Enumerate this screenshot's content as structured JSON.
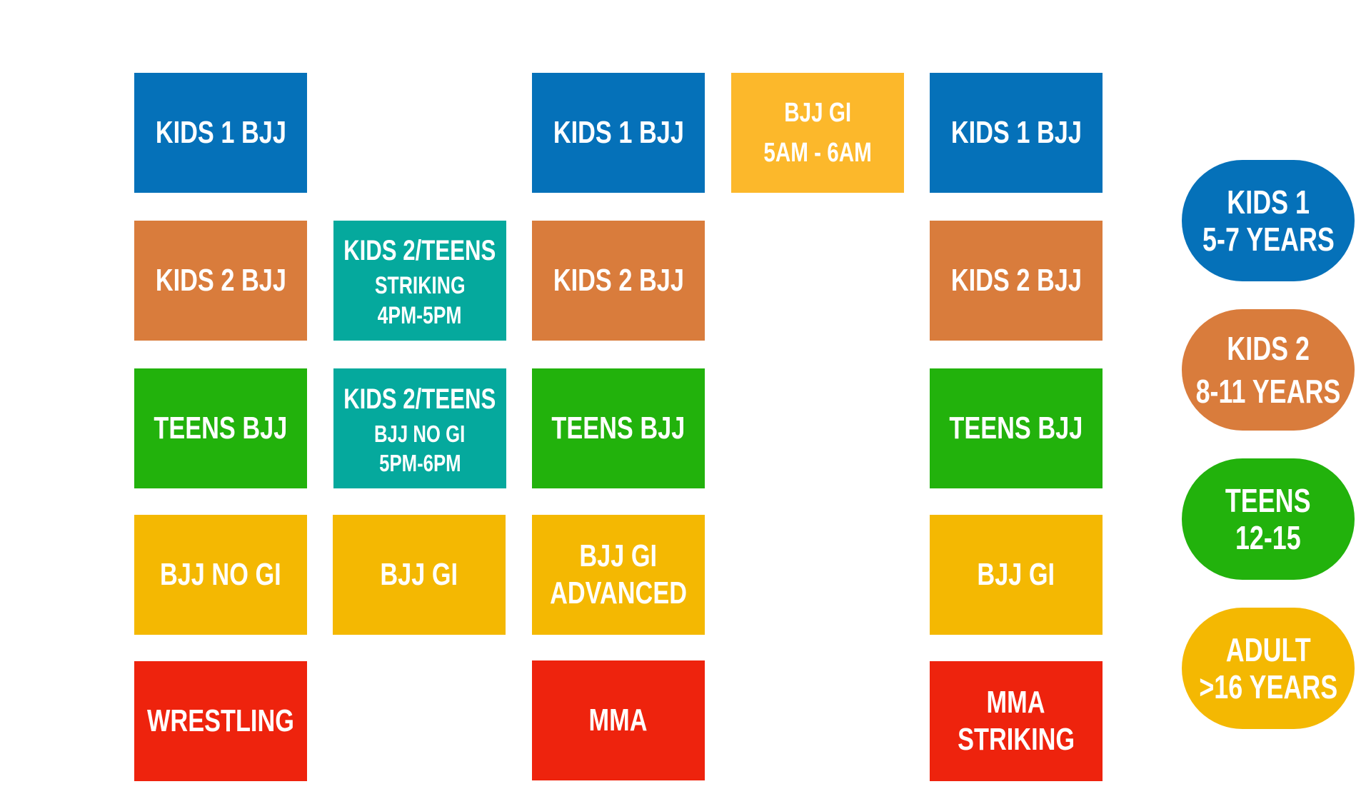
{
  "colors": {
    "kids1": "#0571b9",
    "kids2": "#d97c3c",
    "teens": "#22b20c",
    "adult": "#f4b802",
    "kids_teens_special": "#05a99d",
    "combat": "#ee230d"
  },
  "columns": [
    {
      "blocks": [
        {
          "lines": [
            "KIDS 1 BJJ"
          ]
        },
        {
          "lines": [
            "KIDS 2 BJJ"
          ]
        },
        {
          "lines": [
            "TEENS BJJ"
          ]
        },
        {
          "lines": [
            "BJJ NO GI"
          ]
        },
        {
          "lines": [
            "WRESTLING"
          ]
        }
      ]
    },
    {
      "blocks": [
        {
          "lines": [
            "KIDS 2/TEENS",
            "STRIKING",
            "4PM-5PM"
          ]
        },
        {
          "lines": [
            "KIDS 2/TEENS",
            "BJJ NO GI",
            "5PM-6PM"
          ]
        },
        {
          "lines": [
            "BJJ GI"
          ]
        }
      ]
    },
    {
      "blocks": [
        {
          "lines": [
            "KIDS 1 BJJ"
          ]
        },
        {
          "lines": [
            "KIDS 2 BJJ"
          ]
        },
        {
          "lines": [
            "TEENS BJJ"
          ]
        },
        {
          "lines": [
            "BJJ GI",
            "ADVANCED"
          ]
        },
        {
          "lines": [
            "MMA"
          ]
        }
      ]
    },
    {
      "blocks": [
        {
          "lines": [
            "BJJ GI",
            "5AM - 6AM"
          ]
        }
      ]
    },
    {
      "blocks": [
        {
          "lines": [
            "KIDS 1 BJJ"
          ]
        },
        {
          "lines": [
            "KIDS 2 BJJ"
          ]
        },
        {
          "lines": [
            "TEENS BJJ"
          ]
        },
        {
          "lines": [
            "BJJ GI"
          ]
        },
        {
          "lines": [
            "MMA",
            "STRIKING"
          ]
        }
      ]
    }
  ],
  "legend": [
    {
      "lines": [
        "KIDS 1",
        "5-7 YEARS"
      ]
    },
    {
      "lines": [
        "KIDS 2",
        "8-11 YEARS"
      ]
    },
    {
      "lines": [
        "TEENS",
        "12-15"
      ]
    },
    {
      "lines": [
        "ADULT",
        ">16 YEARS"
      ]
    }
  ]
}
